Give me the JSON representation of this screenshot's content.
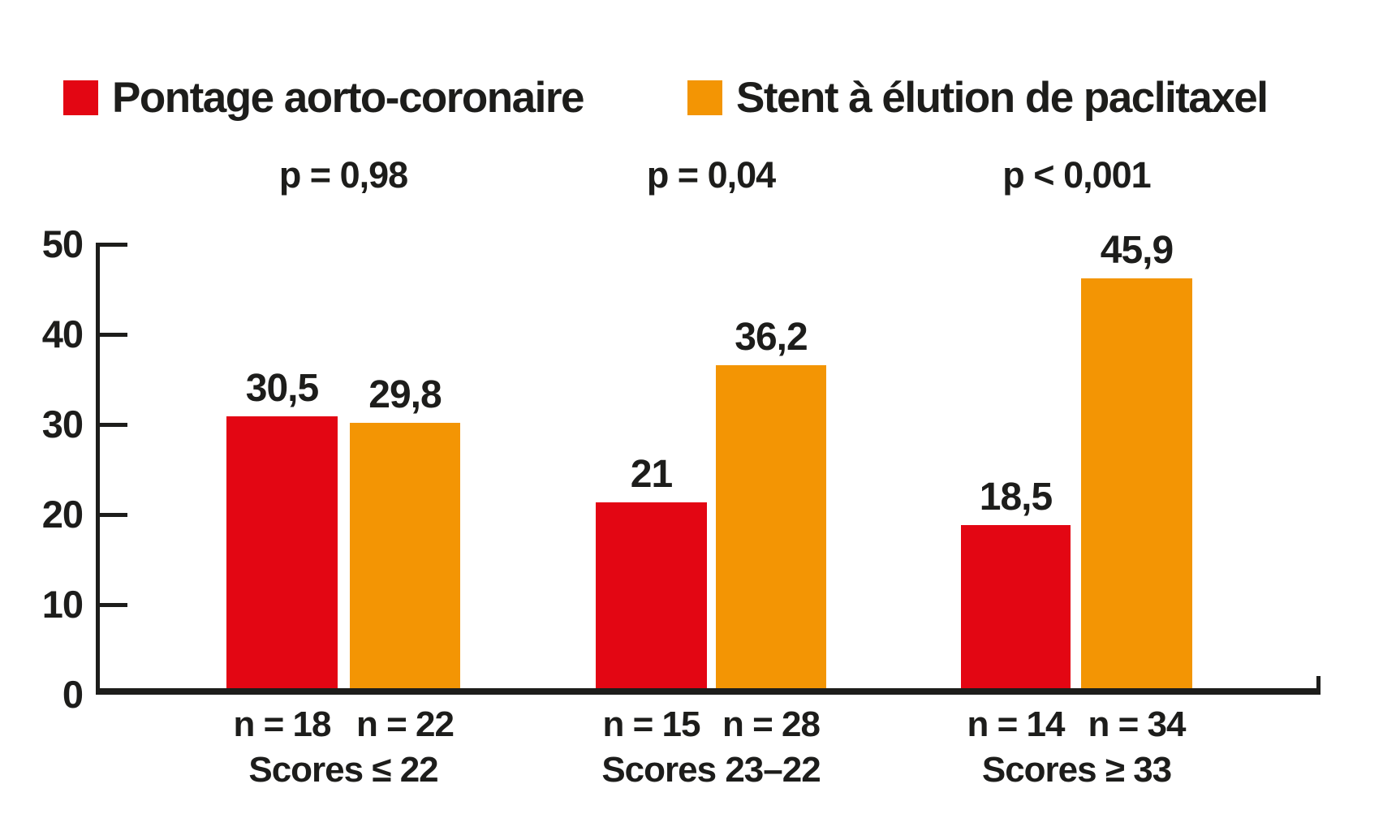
{
  "colors": {
    "pontage_red": "#E30613",
    "stent_orange": "#F39504",
    "text_black": "#1D1D1B"
  },
  "legend": [
    {
      "label": "Pontage aorto-coronaire",
      "color": "#E30613"
    },
    {
      "label": "Stent à élution de paclitaxel",
      "color": "#F39504"
    }
  ],
  "chart_data": {
    "type": "bar",
    "title": "",
    "xlabel": "",
    "ylabel": "",
    "ylim": [
      0,
      50
    ],
    "yticks": [
      0,
      10,
      20,
      30,
      40,
      50
    ],
    "grid": false,
    "legend_position": "top",
    "series_names": [
      "Pontage aorto-coronaire",
      "Stent à élution de paclitaxel"
    ],
    "series_colors": [
      "#E30613",
      "#F39504"
    ],
    "groups": [
      {
        "p_label": "p = 0,98",
        "score_label": "Scores ≤ 22",
        "bars": [
          {
            "series": "Pontage aorto-coronaire",
            "value": 30.5,
            "value_label": "30,5",
            "n_label": "n = 18"
          },
          {
            "series": "Stent à élution de paclitaxel",
            "value": 29.8,
            "value_label": "29,8",
            "n_label": "n = 22"
          }
        ]
      },
      {
        "p_label": "p = 0,04",
        "score_label": "Scores 23–22",
        "bars": [
          {
            "series": "Pontage aorto-coronaire",
            "value": 21,
            "value_label": "21",
            "n_label": "n = 15"
          },
          {
            "series": "Stent à élution de paclitaxel",
            "value": 36.2,
            "value_label": "36,2",
            "n_label": "n = 28"
          }
        ]
      },
      {
        "p_label": "p < 0,001",
        "score_label": "Scores ≥ 33",
        "bars": [
          {
            "series": "Pontage aorto-coronaire",
            "value": 18.5,
            "value_label": "18,5",
            "n_label": "n = 14"
          },
          {
            "series": "Stent à élution de paclitaxel",
            "value": 45.9,
            "value_label": "45,9",
            "n_label": "n = 34"
          }
        ]
      }
    ]
  }
}
